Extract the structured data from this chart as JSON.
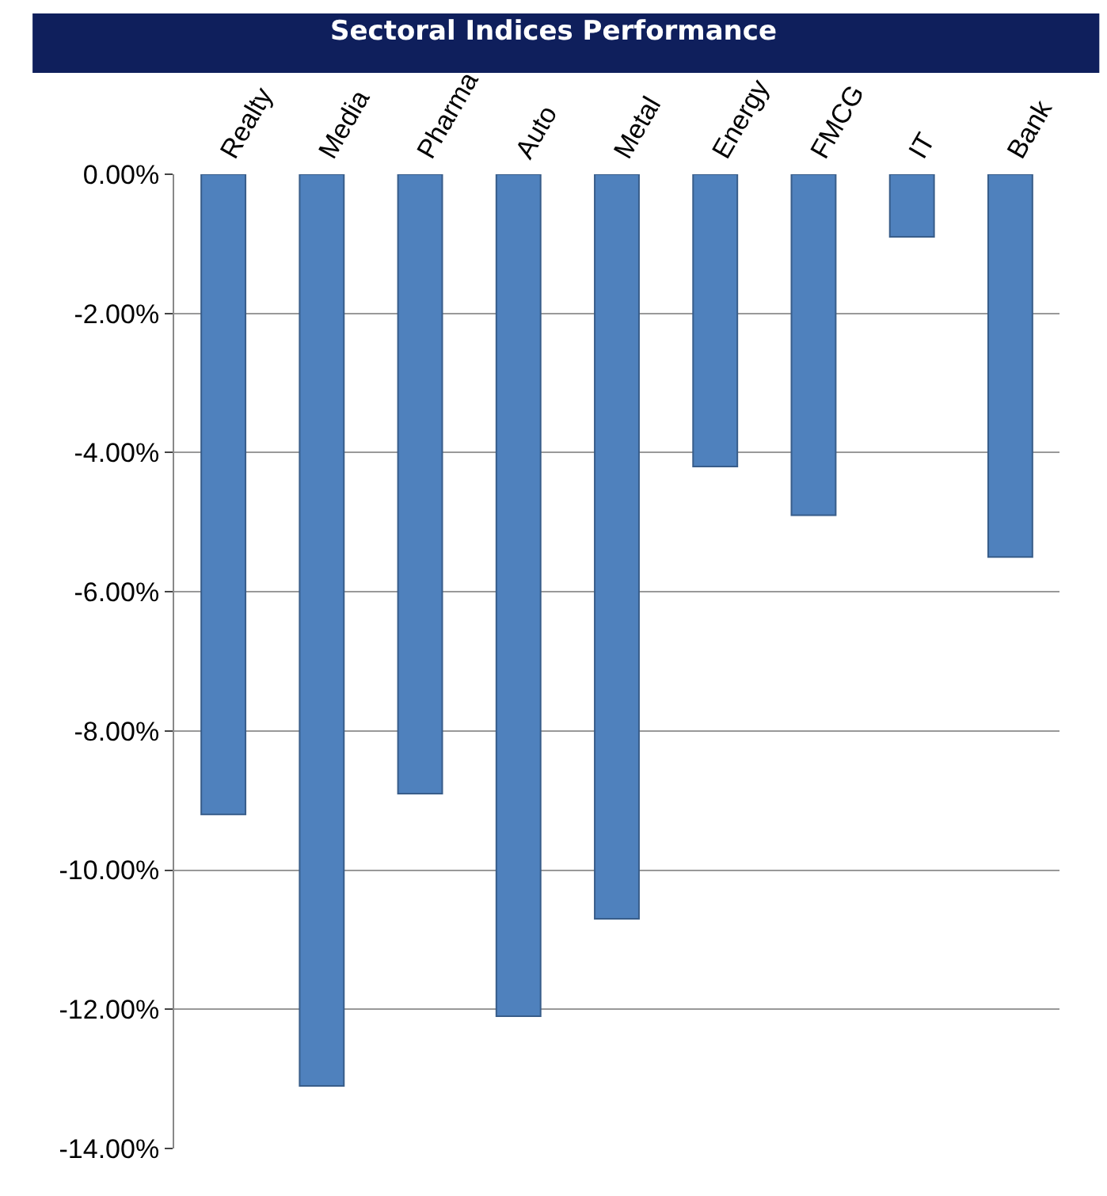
{
  "chart_data": {
    "type": "bar",
    "title": "Sectoral Indices Performance",
    "categories": [
      "Realty",
      "Media",
      "Pharma",
      "Auto",
      "Metal",
      "Energy",
      "FMCG",
      "IT",
      "Bank"
    ],
    "values": [
      -9.2,
      -13.1,
      -8.9,
      -12.1,
      -10.7,
      -4.2,
      -4.9,
      -0.9,
      -5.5
    ],
    "color": "#4f81bd",
    "ylim": [
      -14,
      0
    ],
    "yticks": [
      {
        "value": 0,
        "label": "0.00%"
      },
      {
        "value": -2,
        "label": "-2.00%"
      },
      {
        "value": -4,
        "label": "-4.00%"
      },
      {
        "value": -6,
        "label": "-6.00%"
      },
      {
        "value": -8,
        "label": "-8.00%"
      },
      {
        "value": -10,
        "label": "-10.00%"
      },
      {
        "value": -12,
        "label": "-12.00%"
      },
      {
        "value": -14,
        "label": "-14.00%"
      }
    ],
    "grid": "y"
  }
}
